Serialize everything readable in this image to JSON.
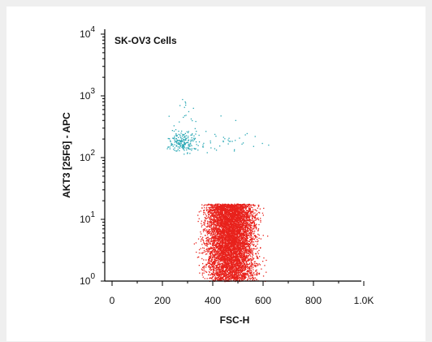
{
  "chart_data": {
    "type": "scatter",
    "title": "SK-OV3 Cells",
    "xlabel": "FSC-H",
    "ylabel": "AKT3 [25F6] - APC",
    "x_scale": "linear",
    "y_scale": "log",
    "xlim": [
      0,
      1024
    ],
    "ylim": [
      1,
      10000
    ],
    "x_ticks": [
      "0",
      "200",
      "400",
      "600",
      "800",
      "1.0K"
    ],
    "x_tick_values": [
      0,
      200,
      400,
      600,
      800,
      1000
    ],
    "y_ticks": [
      {
        "base": "10",
        "exp": "0",
        "value": 1
      },
      {
        "base": "10",
        "exp": "1",
        "value": 10
      },
      {
        "base": "10",
        "exp": "2",
        "value": 100
      },
      {
        "base": "10",
        "exp": "3",
        "value": 1000
      },
      {
        "base": "10",
        "exp": "4",
        "value": 10000
      }
    ],
    "grid": false,
    "legend": false,
    "populations": [
      {
        "color": "#e8221c",
        "density": "high",
        "x_range": [
          180,
          640
        ],
        "y_range": [
          1,
          18
        ],
        "center": {
          "x": 470,
          "y": 3.5
        }
      },
      {
        "color": "#2aa8b5",
        "density": "low",
        "x_range": [
          190,
          620
        ],
        "y_range": [
          70,
          1000
        ],
        "center": {
          "x": 280,
          "y": 180
        }
      }
    ]
  },
  "colors": {
    "page_background": "#efefef",
    "plot_background": "#ffffff",
    "high_population": "#e8221c",
    "low_population": "#2aa8b5"
  }
}
